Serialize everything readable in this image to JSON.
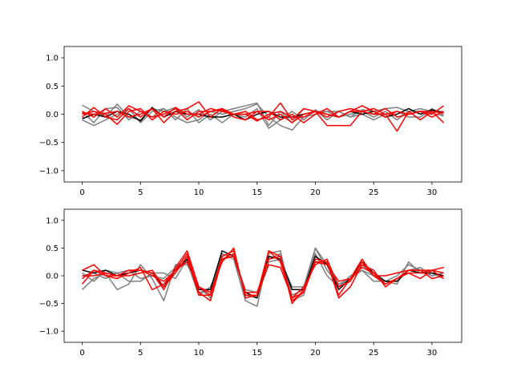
{
  "chart_data": [
    {
      "type": "line",
      "x": [
        0,
        1,
        2,
        3,
        4,
        5,
        6,
        7,
        8,
        9,
        10,
        11,
        12,
        13,
        14,
        15,
        16,
        17,
        18,
        19,
        20,
        21,
        22,
        23,
        24,
        25,
        26,
        27,
        28,
        29,
        30,
        31
      ],
      "ylim": [
        -1.2,
        1.2
      ],
      "xlim": [
        -1.55,
        32.55
      ],
      "xticks": [
        0,
        5,
        10,
        15,
        20,
        25,
        30
      ],
      "xtick_labels": [
        "0",
        "5",
        "10",
        "15",
        "20",
        "25",
        "30"
      ],
      "yticks": [
        -1.0,
        -0.5,
        0.0,
        0.5,
        1.0
      ],
      "ytick_labels": [
        "−1.0",
        "−0.5",
        "0.0",
        "0.5",
        "1.0"
      ],
      "grid": false,
      "series": [
        {
          "color": "#7f7f7f",
          "values": [
            0.16,
            0.05,
            -0.05,
            0.18,
            -0.05,
            -0.1,
            0.1,
            0.05,
            0.12,
            -0.05,
            0.08,
            -0.1,
            0.05,
            0.1,
            0.15,
            0.2,
            -0.2,
            0.05,
            -0.15,
            0.1,
            0.05,
            0.05,
            0.05,
            -0.05,
            0.08,
            0.05,
            0.1,
            0.12,
            0.05,
            0.1,
            0.05,
            0.05
          ]
        },
        {
          "color": "#7f7f7f",
          "values": [
            -0.1,
            -0.2,
            -0.1,
            0.0,
            0.1,
            -0.15,
            0.05,
            0.1,
            -0.05,
            -0.15,
            -0.1,
            0.05,
            0.0,
            0.05,
            0.1,
            0.18,
            -0.05,
            -0.2,
            -0.28,
            -0.05,
            0.0,
            0.05,
            -0.05,
            0.0,
            0.05,
            -0.05,
            0.05,
            -0.1,
            0.05,
            0.05,
            0.02,
            -0.03
          ]
        },
        {
          "color": "#7f7f7f",
          "values": [
            0.05,
            -0.15,
            0.1,
            0.12,
            -0.1,
            0.05,
            -0.05,
            0.1,
            -0.1,
            0.1,
            -0.15,
            0.0,
            -0.15,
            0.0,
            -0.05,
            0.1,
            -0.25,
            -0.1,
            0.05,
            -0.1,
            0.08,
            -0.1,
            0.05,
            -0.05,
            0.0,
            -0.1,
            0.0,
            0.05,
            -0.05,
            -0.05,
            0.1,
            -0.02
          ]
        },
        {
          "color": "#000000",
          "values": [
            -0.08,
            0.0,
            -0.05,
            0.05,
            0.0,
            -0.12,
            0.12,
            -0.05,
            0.05,
            0.0,
            0.0,
            -0.05,
            -0.05,
            0.0,
            -0.1,
            0.0,
            0.05,
            -0.05,
            -0.05,
            0.0,
            0.05,
            0.0,
            -0.05,
            0.05,
            0.0,
            0.05,
            -0.05,
            0.0,
            0.1,
            0.0,
            0.08,
            0.02
          ]
        },
        {
          "color": "#ff0000",
          "values": [
            0.05,
            -0.05,
            0.1,
            -0.05,
            0.15,
            0.05,
            -0.05,
            0.0,
            0.1,
            -0.1,
            0.05,
            0.05,
            0.1,
            -0.05,
            -0.1,
            0.05,
            0.05,
            -0.1,
            0.0,
            -0.15,
            0.0,
            0.1,
            -0.05,
            0.05,
            0.15,
            0.05,
            -0.05,
            0.05,
            0.0,
            0.05,
            0.0,
            0.15
          ]
        },
        {
          "color": "#ff0000",
          "values": [
            -0.05,
            0.12,
            -0.05,
            -0.1,
            0.1,
            -0.05,
            0.1,
            -0.15,
            0.05,
            0.1,
            0.22,
            -0.05,
            0.1,
            0.0,
            0.05,
            -0.1,
            -0.05,
            0.2,
            -0.1,
            0.1,
            0.05,
            0.0,
            -0.05,
            0.05,
            0.05,
            0.1,
            0.0,
            0.05,
            0.0,
            0.05,
            -0.05,
            0.05
          ]
        },
        {
          "color": "#ff0000",
          "values": [
            0.0,
            0.05,
            0.0,
            -0.18,
            0.05,
            0.1,
            -0.1,
            0.05,
            0.0,
            0.05,
            -0.05,
            0.05,
            0.08,
            0.0,
            0.0,
            -0.12,
            0.0,
            0.05,
            -0.05,
            -0.05,
            0.05,
            -0.2,
            -0.2,
            -0.2,
            0.05,
            0.0,
            0.0,
            -0.3,
            0.05,
            -0.1,
            0.05,
            -0.15
          ]
        },
        {
          "color": "#ff0000",
          "values": [
            0.02,
            0.0,
            0.02,
            0.05,
            -0.05,
            0.0,
            0.1,
            -0.05,
            0.12,
            0.0,
            0.0,
            0.1,
            0.05,
            0.0,
            0.0,
            0.05,
            -0.1,
            0.0,
            -0.15,
            0.0,
            0.05,
            -0.05,
            0.05,
            0.1,
            0.05,
            0.0,
            0.1,
            -0.05,
            0.0,
            0.05,
            0.05,
            0.02
          ]
        }
      ]
    },
    {
      "type": "line",
      "x": [
        0,
        1,
        2,
        3,
        4,
        5,
        6,
        7,
        8,
        9,
        10,
        11,
        12,
        13,
        14,
        15,
        16,
        17,
        18,
        19,
        20,
        21,
        22,
        23,
        24,
        25,
        26,
        27,
        28,
        29,
        30,
        31
      ],
      "ylim": [
        -1.2,
        1.2
      ],
      "xlim": [
        -1.55,
        32.55
      ],
      "xticks": [
        0,
        5,
        10,
        15,
        20,
        25,
        30
      ],
      "xtick_labels": [
        "0",
        "5",
        "10",
        "15",
        "20",
        "25",
        "30"
      ],
      "yticks": [
        -1.0,
        -0.5,
        0.0,
        0.5,
        1.0
      ],
      "ytick_labels": [
        "−1.0",
        "−0.5",
        "0.0",
        "0.5",
        "1.0"
      ],
      "grid": false,
      "series": [
        {
          "color": "#7f7f7f",
          "values": [
            -0.25,
            -0.05,
            0.05,
            -0.25,
            -0.15,
            0.2,
            -0.05,
            -0.45,
            0.2,
            0.2,
            -0.2,
            -0.4,
            0.4,
            0.3,
            -0.45,
            -0.55,
            0.4,
            0.45,
            -0.45,
            -0.35,
            0.5,
            0.1,
            -0.15,
            -0.05,
            0.1,
            -0.1,
            -0.1,
            -0.15,
            0.25,
            0.05,
            0.05,
            -0.05
          ]
        },
        {
          "color": "#7f7f7f",
          "values": [
            0.05,
            -0.1,
            0.1,
            0.05,
            -0.1,
            -0.1,
            0.05,
            0.05,
            -0.05,
            0.3,
            -0.3,
            -0.25,
            0.35,
            0.45,
            -0.35,
            -0.4,
            0.3,
            0.4,
            -0.35,
            -0.25,
            0.4,
            0.0,
            -0.2,
            0.0,
            0.1,
            0.0,
            -0.15,
            -0.05,
            0.1,
            0.15,
            0.0,
            0.05
          ]
        },
        {
          "color": "#7f7f7f",
          "values": [
            0.0,
            0.05,
            -0.05,
            0.05,
            0.1,
            -0.05,
            0.0,
            -0.05,
            0.15,
            0.25,
            -0.35,
            -0.2,
            0.3,
            0.35,
            -0.25,
            -0.3,
            0.25,
            0.3,
            -0.2,
            -0.2,
            0.5,
            0.2,
            -0.2,
            -0.05,
            0.2,
            0.0,
            -0.1,
            0.0,
            0.2,
            0.1,
            0.0,
            0.05
          ]
        },
        {
          "color": "#000000",
          "values": [
            0.1,
            0.05,
            0.1,
            0.0,
            0.05,
            0.1,
            0.05,
            -0.2,
            0.1,
            0.3,
            -0.25,
            -0.25,
            0.45,
            0.35,
            -0.3,
            -0.4,
            0.35,
            0.3,
            -0.25,
            -0.25,
            0.35,
            0.2,
            -0.25,
            -0.05,
            0.25,
            0.05,
            -0.1,
            -0.1,
            0.1,
            0.05,
            0.05,
            0.0
          ]
        },
        {
          "color": "#ff0000",
          "values": [
            0.1,
            0.2,
            0.0,
            0.0,
            0.1,
            0.1,
            0.05,
            -0.25,
            0.15,
            0.45,
            -0.2,
            -0.3,
            0.25,
            0.5,
            -0.4,
            -0.35,
            0.45,
            0.35,
            -0.5,
            -0.25,
            0.25,
            0.25,
            -0.35,
            -0.05,
            0.3,
            0.0,
            0.0,
            0.05,
            0.1,
            0.1,
            0.1,
            0.05
          ]
        },
        {
          "color": "#ff0000",
          "values": [
            -0.15,
            0.1,
            0.0,
            -0.05,
            0.05,
            0.15,
            -0.25,
            -0.15,
            0.1,
            0.4,
            -0.3,
            -0.45,
            0.3,
            0.4,
            -0.35,
            -0.35,
            0.45,
            0.25,
            -0.4,
            -0.3,
            0.3,
            0.25,
            -0.4,
            -0.2,
            0.2,
            0.1,
            -0.2,
            -0.05,
            0.05,
            0.05,
            0.1,
            -0.05
          ]
        },
        {
          "color": "#ff0000",
          "values": [
            0.0,
            0.0,
            0.05,
            0.0,
            0.0,
            0.05,
            0.1,
            -0.2,
            0.05,
            0.35,
            -0.35,
            -0.35,
            0.35,
            0.45,
            -0.35,
            -0.35,
            0.2,
            0.15,
            -0.4,
            -0.2,
            0.2,
            0.3,
            -0.2,
            -0.1,
            0.25,
            0.0,
            -0.15,
            -0.05,
            0.05,
            -0.05,
            0.1,
            0.15
          ]
        },
        {
          "color": "#ff0000",
          "values": [
            -0.05,
            0.1,
            0.05,
            0.0,
            0.1,
            0.1,
            0.0,
            -0.1,
            0.1,
            0.25,
            -0.2,
            -0.35,
            0.3,
            0.35,
            -0.3,
            -0.3,
            0.3,
            0.35,
            -0.45,
            -0.3,
            0.25,
            0.2,
            -0.1,
            -0.05,
            0.15,
            0.05,
            -0.15,
            -0.05,
            0.1,
            0.1,
            -0.05,
            0.0
          ]
        }
      ]
    }
  ]
}
